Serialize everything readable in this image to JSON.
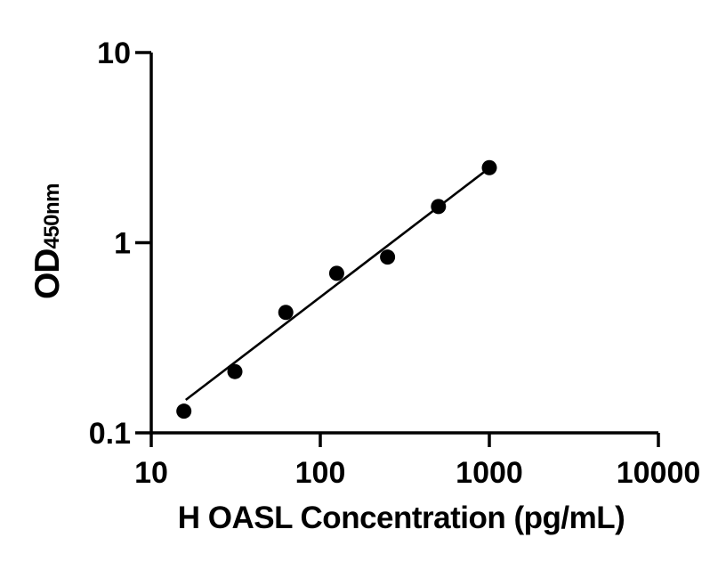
{
  "page": {
    "background": "#ffffff"
  },
  "chart_data": {
    "type": "scatter",
    "title": "",
    "xlabel": "H OASL Concentration (pg/mL)",
    "ylabel": {
      "main": "OD",
      "sub": "450nm"
    },
    "x_scale": "log",
    "y_scale": "log",
    "xlim": [
      10,
      10000
    ],
    "ylim": [
      0.1,
      10
    ],
    "x_ticks": {
      "values": [
        10,
        100,
        1000,
        10000
      ],
      "labels": [
        "10",
        "100",
        "1000",
        "10000"
      ]
    },
    "y_ticks": {
      "values": [
        0.1,
        1,
        10
      ],
      "labels": [
        "0.1",
        "1",
        "10"
      ]
    },
    "grid": false,
    "legend": false,
    "axis_color": "#000000",
    "text_color": "#000000",
    "series": [
      {
        "name": "standard-points",
        "type": "scatter",
        "marker": {
          "shape": "circle",
          "color": "#000000",
          "radius_px": 8.5
        },
        "x": [
          15.6,
          31.25,
          62.5,
          125,
          250,
          500,
          1000
        ],
        "y": [
          0.13,
          0.21,
          0.43,
          0.69,
          0.84,
          1.55,
          2.48
        ]
      },
      {
        "name": "fit-line",
        "type": "line",
        "color": "#000000",
        "x": [
          16,
          1010
        ],
        "y": [
          0.149,
          2.49
        ]
      }
    ]
  }
}
